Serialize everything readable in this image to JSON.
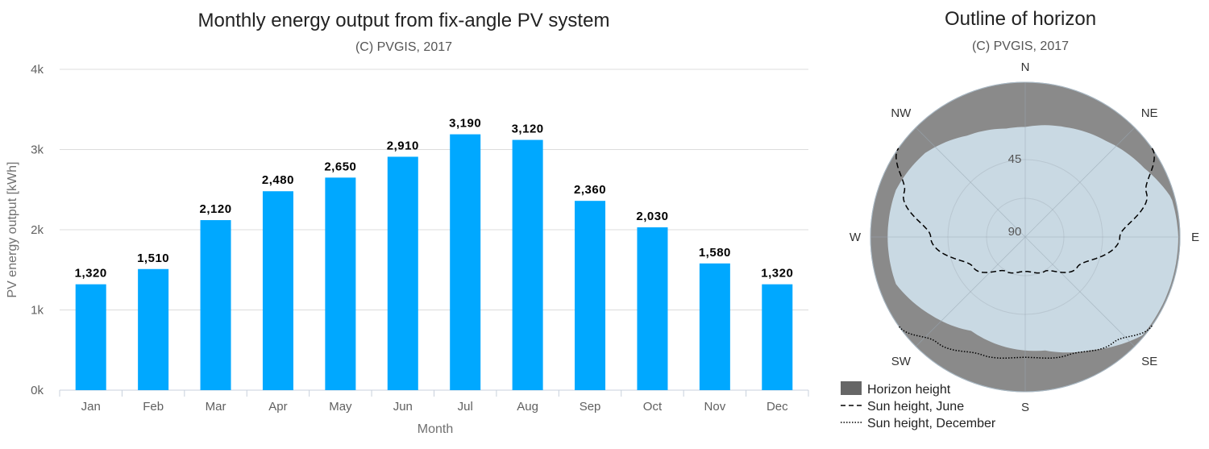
{
  "bar_chart": {
    "title": "Monthly energy output from fix-angle PV system",
    "subtitle": "(C) PVGIS, 2017",
    "xlabel": "Month",
    "ylabel": "PV energy output [kWh]",
    "y_ticks": [
      {
        "value": 0,
        "label": "0k"
      },
      {
        "value": 1000,
        "label": "1k"
      },
      {
        "value": 2000,
        "label": "2k"
      },
      {
        "value": 3000,
        "label": "3k"
      },
      {
        "value": 4000,
        "label": "4k"
      }
    ]
  },
  "horizon_chart": {
    "title": "Outline of horizon",
    "subtitle": "(C) PVGIS, 2017",
    "directions": [
      "N",
      "NE",
      "E",
      "SE",
      "S",
      "SW",
      "W",
      "NW"
    ],
    "ring_labels": [
      "45",
      "90"
    ],
    "legend": [
      {
        "label": "Horizon height",
        "style": "swatch"
      },
      {
        "label": "Sun height, June",
        "style": "dashed"
      },
      {
        "label": "Sun height, December",
        "style": "dotted"
      }
    ]
  },
  "chart_data": [
    {
      "type": "bar",
      "title": "Monthly energy output from fix-angle PV system",
      "subtitle": "(C) PVGIS, 2017",
      "xlabel": "Month",
      "ylabel": "PV energy output [kWh]",
      "categories": [
        "Jan",
        "Feb",
        "Mar",
        "Apr",
        "May",
        "Jun",
        "Jul",
        "Aug",
        "Sep",
        "Oct",
        "Nov",
        "Dec"
      ],
      "values": [
        1320,
        1510,
        2120,
        2480,
        2650,
        2910,
        3190,
        3120,
        2360,
        2030,
        1580,
        1320
      ],
      "data_labels": [
        "1,320",
        "1,510",
        "2,120",
        "2,480",
        "2,650",
        "2,910",
        "3,190",
        "3,120",
        "2,360",
        "2,030",
        "1,580",
        "1,320"
      ],
      "ylim": [
        0,
        4000
      ],
      "grid": true,
      "color": "#00a8ff"
    },
    {
      "type": "polar",
      "title": "Outline of horizon",
      "subtitle": "(C) PVGIS, 2017",
      "radial_axis": "zenith angle (center = 90, outer edge = 0)",
      "horizon_height_deg": [
        {
          "azimuth": 0,
          "height": 26
        },
        {
          "azimuth": 20,
          "height": 22
        },
        {
          "azimuth": 40,
          "height": 17
        },
        {
          "azimuth": 60,
          "height": 10
        },
        {
          "azimuth": 75,
          "height": 2
        },
        {
          "azimuth": 90,
          "height": 1
        },
        {
          "azimuth": 110,
          "height": 1
        },
        {
          "azimuth": 130,
          "height": 1
        },
        {
          "azimuth": 150,
          "height": 14
        },
        {
          "azimuth": 170,
          "height": 23
        },
        {
          "azimuth": 190,
          "height": 25
        },
        {
          "azimuth": 210,
          "height": 27
        },
        {
          "azimuth": 230,
          "height": 19
        },
        {
          "azimuth": 250,
          "height": 10
        },
        {
          "azimuth": 270,
          "height": 10
        },
        {
          "azimuth": 290,
          "height": 10
        },
        {
          "azimuth": 310,
          "height": 14
        },
        {
          "azimuth": 330,
          "height": 22
        },
        {
          "azimuth": 350,
          "height": 26
        }
      ],
      "sun_height_june_deg": [
        {
          "azimuth": 55,
          "height": 0
        },
        {
          "azimuth": 70,
          "height": 15
        },
        {
          "azimuth": 90,
          "height": 35
        },
        {
          "azimuth": 120,
          "height": 55
        },
        {
          "azimuth": 150,
          "height": 67
        },
        {
          "azimuth": 180,
          "height": 70
        },
        {
          "azimuth": 210,
          "height": 67
        },
        {
          "azimuth": 240,
          "height": 55
        },
        {
          "azimuth": 270,
          "height": 35
        },
        {
          "azimuth": 290,
          "height": 15
        },
        {
          "azimuth": 305,
          "height": 0
        }
      ],
      "sun_height_december_deg": [
        {
          "azimuth": 125,
          "height": 0
        },
        {
          "azimuth": 140,
          "height": 10
        },
        {
          "azimuth": 160,
          "height": 17
        },
        {
          "azimuth": 180,
          "height": 20
        },
        {
          "azimuth": 200,
          "height": 17
        },
        {
          "azimuth": 220,
          "height": 10
        },
        {
          "azimuth": 235,
          "height": 0
        }
      ],
      "legend": [
        "Horizon height",
        "Sun height, June",
        "Sun height, December"
      ]
    }
  ]
}
